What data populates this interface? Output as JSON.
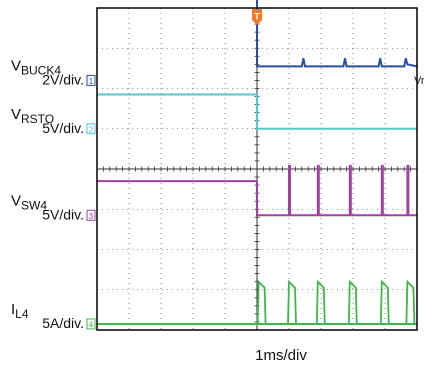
{
  "chart_data": {
    "type": "line",
    "title": "",
    "xlabel": "1ms/div",
    "ylabel": "",
    "grid": true,
    "divisions": {
      "x": 10,
      "y": 8
    },
    "x_unit": "ms",
    "x_range_ms": [
      0,
      10
    ],
    "trigger_marker": "T",
    "trigger_time_ms": 5.0,
    "series": [
      {
        "name": "VBUCK4",
        "label_main": "V",
        "label_sub": "BUCK4",
        "scale": "2V/div.",
        "channel": "1",
        "color": "#2a4fa0",
        "ground_div": 6.2,
        "points_ms_div": [
          [
            0,
            8.35
          ],
          [
            5.0,
            8.35
          ],
          [
            5.0,
            6.55
          ],
          [
            6.4,
            6.55
          ],
          [
            6.45,
            6.75
          ],
          [
            6.5,
            6.55
          ],
          [
            7.7,
            6.55
          ],
          [
            7.75,
            6.75
          ],
          [
            7.8,
            6.55
          ],
          [
            8.8,
            6.55
          ],
          [
            8.85,
            6.75
          ],
          [
            8.9,
            6.55
          ],
          [
            9.6,
            6.55
          ],
          [
            9.65,
            6.75
          ],
          [
            9.7,
            6.6
          ],
          [
            10,
            6.55
          ]
        ],
        "extra_text": "Vr"
      },
      {
        "name": "VRSTO",
        "label_main": "V",
        "label_sub": "RSTO",
        "scale": "5V/div.",
        "channel": "2",
        "color": "#4fc8cf",
        "ground_div": 5.0,
        "points_ms_div": [
          [
            0,
            5.85
          ],
          [
            5.0,
            5.85
          ],
          [
            5.0,
            5.0
          ],
          [
            10,
            5.0
          ]
        ]
      },
      {
        "name": "VSW4",
        "label_main": "V",
        "label_sub": "SW4",
        "scale": "5V/div.",
        "channel": "3",
        "color": "#a040a0",
        "ground_div": 2.85,
        "points_ms_div": [
          [
            0,
            3.7
          ],
          [
            5.0,
            3.7
          ],
          [
            5.0,
            2.85
          ],
          [
            10,
            2.85
          ]
        ],
        "pulses_ms": [
          6.0,
          6.9,
          7.9,
          8.9,
          9.7
        ],
        "pulse_top_div": 4.1
      },
      {
        "name": "IL4",
        "label_main": "I",
        "label_sub": "L4",
        "scale": "5A/div.",
        "channel": "4",
        "color": "#3fb54a",
        "ground_div": 0.15,
        "points_ms_div": [
          [
            0,
            0.15
          ],
          [
            10,
            0.15
          ]
        ],
        "pulses_ms": [
          5.05,
          6.0,
          6.9,
          7.9,
          8.9,
          9.7
        ],
        "pulse_top_div": 1.2
      }
    ]
  }
}
